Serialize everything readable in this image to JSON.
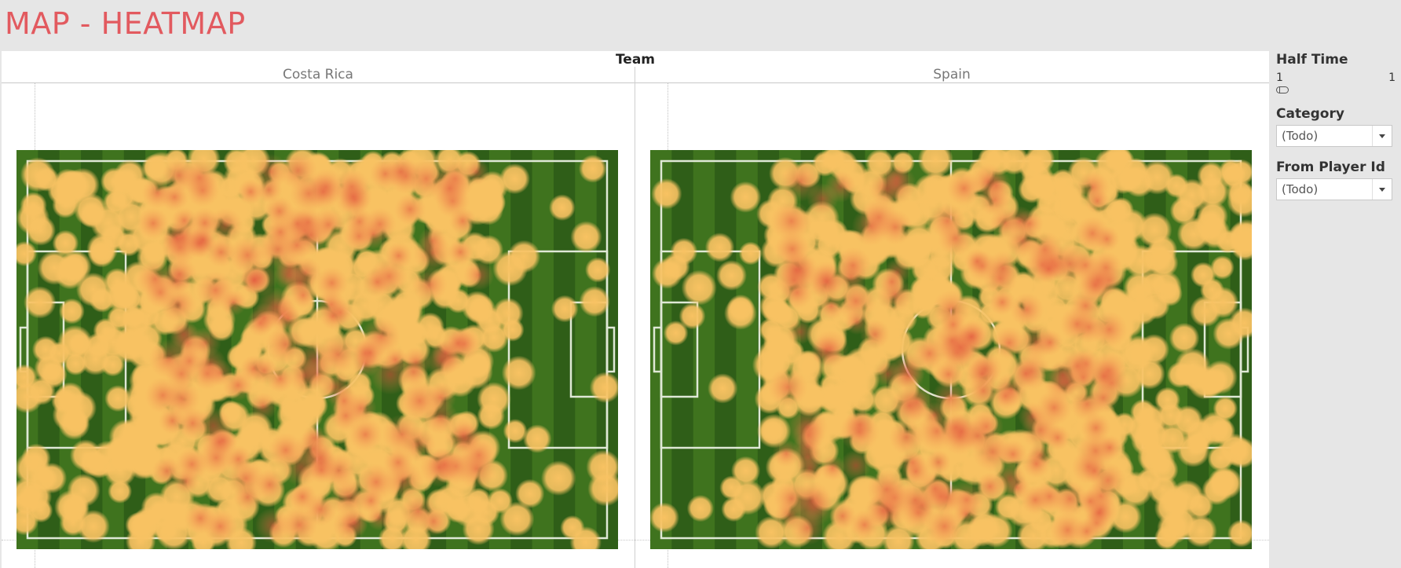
{
  "title": "MAP - HEATMAP",
  "column_header": "Team",
  "teams": [
    "Costa Rica",
    "Spain"
  ],
  "filters": {
    "half_time": {
      "label": "Half Time",
      "min": "1",
      "max": "1"
    },
    "category": {
      "label": "Category",
      "value": "(Todo)"
    },
    "player": {
      "label": "From Player Id",
      "value": "(Todo)"
    }
  },
  "colors": {
    "title": "#e25a5f",
    "pitch_dark": "#2f5e18",
    "pitch_light": "#5f9a2c",
    "heat_low": "#f8c262",
    "heat_mid": "#f59a55",
    "heat_high": "#e0523c"
  }
}
